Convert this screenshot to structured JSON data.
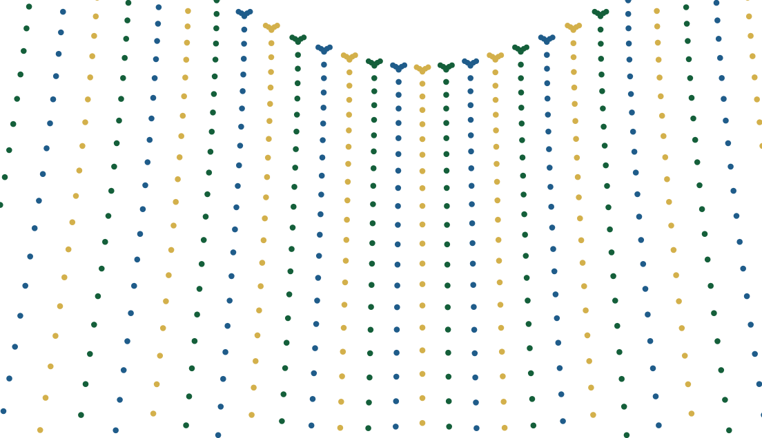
{
  "palette": {
    "background": "#ffffff",
    "colors": [
      "#d3b04b",
      "#145f3a",
      "#1f5c8a"
    ]
  },
  "pattern": {
    "kind": "curved dotted mesh",
    "color_cycle": [
      "gold",
      "green",
      "blue"
    ]
  }
}
